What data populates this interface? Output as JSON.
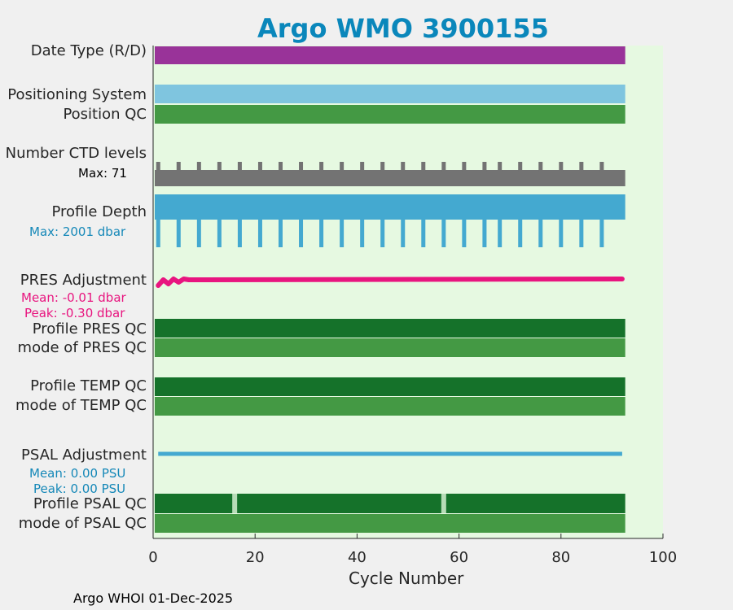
{
  "chart_data": {
    "type": "bar",
    "title": "Argo WMO 3900155",
    "xlabel": "Cycle Number",
    "xlim": [
      0,
      100
    ],
    "x_ticks": [
      "0",
      "20",
      "40",
      "60",
      "80",
      "100"
    ],
    "n_cycles": 92,
    "rows": {
      "date_type": {
        "label": "Date Type (R/D)",
        "color": "#993399"
      },
      "positioning_system": {
        "label": "Positioning System",
        "color": "#7fc5df"
      },
      "position_qc": {
        "label": "Position QC",
        "color": "#449944"
      },
      "number_ctd_levels": {
        "label": "Number CTD levels",
        "max_text": "Max: 71",
        "color": "#737373",
        "tall_cycles": [
          1,
          5,
          9,
          13,
          17,
          21,
          25,
          29,
          33,
          37,
          41,
          45,
          49,
          53,
          57,
          61,
          65,
          68,
          72,
          76,
          80,
          84,
          88
        ]
      },
      "profile_depth": {
        "label": "Profile Depth",
        "max_text": "Max: 2001 dbar",
        "color": "#44a9d0",
        "deep_cycles": [
          1,
          5,
          9,
          13,
          17,
          21,
          25,
          29,
          33,
          37,
          41,
          45,
          49,
          53,
          57,
          61,
          65,
          68,
          72,
          76,
          80,
          84,
          88
        ]
      },
      "pres_adjustment": {
        "label": "PRES Adjustment",
        "mean_text": "Mean: -0.01 dbar",
        "peak_text": "Peak: -0.30 dbar",
        "color": "#e8157f"
      },
      "profile_pres_qc": {
        "label": "Profile PRES QC",
        "color": "#15722a"
      },
      "mode_pres_qc": {
        "label": "mode of PRES QC",
        "color": "#449944"
      },
      "profile_temp_qc": {
        "label": "Profile TEMP QC",
        "color": "#15722a"
      },
      "mode_temp_qc": {
        "label": "mode of TEMP QC",
        "color": "#449944"
      },
      "psal_adjustment": {
        "label": "PSAL Adjustment",
        "mean_text": "Mean: 0.00 PSU",
        "peak_text": "Peak: 0.00 PSU",
        "color": "#44a9d0"
      },
      "profile_psal_qc": {
        "label": "Profile PSAL QC",
        "color": "#15722a",
        "flag_cycles": [
          16,
          57
        ],
        "flag_color": "#b7dcb7"
      },
      "mode_psal_qc": {
        "label": "mode of PSAL QC",
        "color": "#449944"
      }
    }
  },
  "footer": "Argo WHOI 01-Dec-2025",
  "colors": {
    "plot_bg": "#e6f9e1",
    "figure_bg": "#f0f0f0",
    "title": "#0a87bb"
  }
}
